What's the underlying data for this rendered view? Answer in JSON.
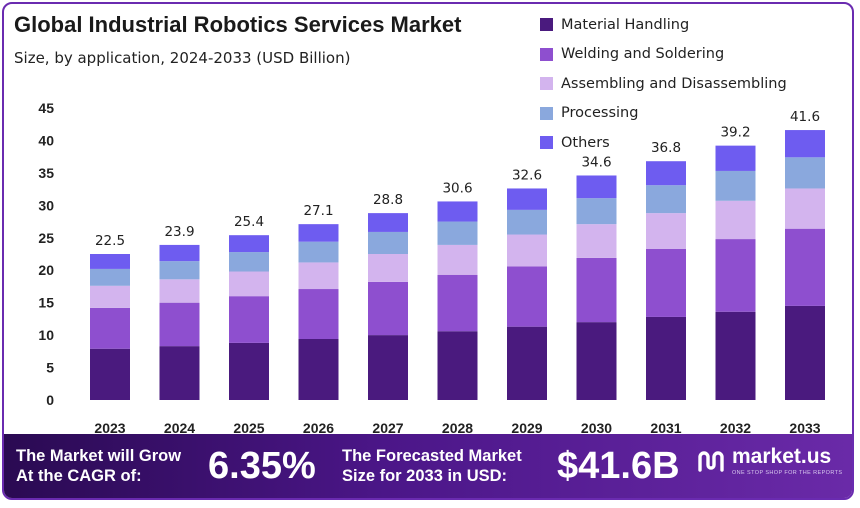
{
  "header": {
    "title": "Global Industrial Robotics Services Market",
    "subtitle": "Size, by application, 2024-2033 (USD Billion)"
  },
  "colors": {
    "material_handling": "#4a1a7e",
    "welding": "#8e4fcf",
    "assembling": "#d3b4ee",
    "processing": "#8aa8dd",
    "others": "#6e5cf0",
    "brand_dark": "#2a0a52"
  },
  "chart_data": {
    "type": "bar",
    "stacked": true,
    "categories": [
      "2023",
      "2024",
      "2025",
      "2026",
      "2027",
      "2028",
      "2029",
      "2030",
      "2031",
      "2032",
      "2033"
    ],
    "totals": [
      22.5,
      23.9,
      25.4,
      27.1,
      28.8,
      30.6,
      32.6,
      34.6,
      36.8,
      39.2,
      41.6
    ],
    "total_labels": [
      "22.5",
      "23.9",
      "25.4",
      "27.1",
      "28.8",
      "30.6",
      "32.6",
      "34.6",
      "36.8",
      "39.2",
      "41.6"
    ],
    "series": [
      {
        "name": "Material Handling",
        "color": "#4a1a7e",
        "values": [
          7.9,
          8.3,
          8.8,
          9.4,
          10.0,
          10.6,
          11.3,
          12.0,
          12.8,
          13.6,
          14.5
        ]
      },
      {
        "name": "Welding and Soldering",
        "color": "#8e4fcf",
        "values": [
          6.3,
          6.7,
          7.2,
          7.7,
          8.2,
          8.7,
          9.3,
          9.9,
          10.5,
          11.2,
          11.9
        ]
      },
      {
        "name": "Assembling and Disassembling",
        "color": "#d3b4ee",
        "values": [
          3.4,
          3.6,
          3.8,
          4.1,
          4.3,
          4.6,
          4.9,
          5.2,
          5.5,
          5.9,
          6.2
        ]
      },
      {
        "name": "Processing",
        "color": "#8aa8dd",
        "values": [
          2.6,
          2.8,
          3.0,
          3.2,
          3.4,
          3.6,
          3.8,
          4.0,
          4.3,
          4.6,
          4.8
        ]
      },
      {
        "name": "Others",
        "color": "#6e5cf0",
        "values": [
          2.3,
          2.5,
          2.6,
          2.7,
          2.9,
          3.1,
          3.3,
          3.5,
          3.7,
          3.9,
          4.2
        ]
      }
    ],
    "ylim": [
      0,
      45
    ],
    "yticks": [
      0,
      5,
      10,
      15,
      20,
      25,
      30,
      35,
      40,
      45
    ],
    "xlabel": "",
    "ylabel": "",
    "grid": false,
    "legend_position": "top-right"
  },
  "footer": {
    "cagr_line1": "The Market will Grow",
    "cagr_line2": "At the CAGR of:",
    "cagr_value": "6.35%",
    "forecast_line1": "The Forecasted Market",
    "forecast_line2": "Size for 2033 in USD:",
    "forecast_value": "$41.6B",
    "brand_name": "market.us",
    "brand_tagline": "ONE STOP SHOP FOR THE REPORTS"
  }
}
